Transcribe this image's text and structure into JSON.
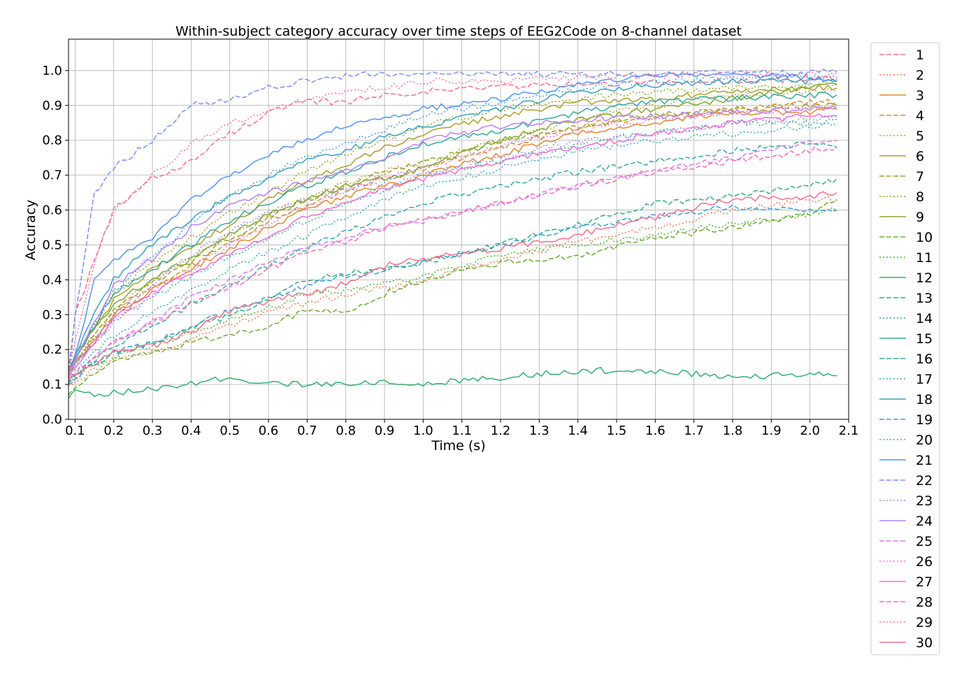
{
  "chart_data": {
    "type": "line",
    "title": "Within-subject category accuracy over time steps of EEG2Code on 8-channel dataset",
    "xlabel": "Time (s)",
    "ylabel": "Accuracy",
    "xlim": [
      0.083,
      2.1
    ],
    "ylim": [
      0.0,
      1.09
    ],
    "x_ticks": [
      "0.1",
      "0.2",
      "0.3",
      "0.4",
      "0.5",
      "0.6",
      "0.7",
      "0.8",
      "0.9",
      "1.0",
      "1.1",
      "1.2",
      "1.3",
      "1.4",
      "1.5",
      "1.6",
      "1.7",
      "1.8",
      "1.9",
      "2.0",
      "2.1"
    ],
    "y_ticks": [
      "0.0",
      "0.1",
      "0.2",
      "0.3",
      "0.4",
      "0.5",
      "0.6",
      "0.7",
      "0.8",
      "0.9",
      "1.0"
    ],
    "grid": true,
    "legend_placement": "outside-right",
    "x": [
      0.083,
      0.1,
      0.15,
      0.2,
      0.3,
      0.4,
      0.5,
      0.6,
      0.7,
      0.8,
      0.9,
      1.0,
      1.2,
      1.4,
      1.6,
      1.8,
      2.0,
      2.07
    ],
    "series": [
      {
        "name": "1",
        "color": "#f77189",
        "dash": "dashed",
        "values": [
          0.12,
          0.3,
          0.45,
          0.6,
          0.69,
          0.74,
          0.82,
          0.88,
          0.91,
          0.91,
          0.93,
          0.94,
          0.955,
          0.96,
          0.965,
          0.97,
          0.975,
          0.975
        ]
      },
      {
        "name": "2",
        "color": "#f7754f",
        "dash": "dotted",
        "values": [
          0.1,
          0.11,
          0.14,
          0.17,
          0.19,
          0.23,
          0.27,
          0.31,
          0.33,
          0.36,
          0.38,
          0.4,
          0.46,
          0.51,
          0.55,
          0.6,
          0.63,
          0.63
        ]
      },
      {
        "name": "3",
        "color": "#e18a31",
        "dash": "solid",
        "values": [
          0.14,
          0.16,
          0.22,
          0.3,
          0.37,
          0.43,
          0.49,
          0.55,
          0.6,
          0.64,
          0.67,
          0.7,
          0.76,
          0.82,
          0.85,
          0.88,
          0.88,
          0.89
        ]
      },
      {
        "name": "4",
        "color": "#ce8f31",
        "dash": "dashed",
        "values": [
          0.12,
          0.16,
          0.23,
          0.3,
          0.38,
          0.44,
          0.51,
          0.57,
          0.61,
          0.66,
          0.69,
          0.72,
          0.78,
          0.84,
          0.87,
          0.89,
          0.91,
          0.91
        ]
      },
      {
        "name": "5",
        "color": "#bb9832",
        "dash": "dotted",
        "values": [
          0.13,
          0.17,
          0.24,
          0.31,
          0.4,
          0.46,
          0.53,
          0.59,
          0.63,
          0.68,
          0.71,
          0.74,
          0.8,
          0.86,
          0.9,
          0.93,
          0.94,
          0.94
        ]
      },
      {
        "name": "6",
        "color": "#ae9d31",
        "dash": "solid",
        "values": [
          0.14,
          0.18,
          0.26,
          0.34,
          0.43,
          0.49,
          0.56,
          0.63,
          0.68,
          0.73,
          0.78,
          0.82,
          0.87,
          0.91,
          0.92,
          0.94,
          0.95,
          0.95
        ]
      },
      {
        "name": "7",
        "color": "#9ca231",
        "dash": "dashed",
        "values": [
          0.13,
          0.16,
          0.24,
          0.31,
          0.39,
          0.45,
          0.52,
          0.58,
          0.63,
          0.67,
          0.71,
          0.74,
          0.8,
          0.84,
          0.87,
          0.89,
          0.9,
          0.9
        ]
      },
      {
        "name": "8",
        "color": "#8ea631",
        "dash": "dotted",
        "values": [
          0.14,
          0.18,
          0.27,
          0.36,
          0.45,
          0.52,
          0.59,
          0.65,
          0.71,
          0.76,
          0.8,
          0.84,
          0.89,
          0.92,
          0.94,
          0.95,
          0.96,
          0.96
        ]
      },
      {
        "name": "9",
        "color": "#80aa31",
        "dash": "solid",
        "values": [
          0.13,
          0.17,
          0.26,
          0.33,
          0.4,
          0.46,
          0.53,
          0.59,
          0.63,
          0.67,
          0.69,
          0.72,
          0.8,
          0.86,
          0.89,
          0.92,
          0.95,
          0.96
        ]
      },
      {
        "name": "10",
        "color": "#6ead32",
        "dash": "dashed",
        "values": [
          0.07,
          0.09,
          0.13,
          0.17,
          0.19,
          0.22,
          0.24,
          0.27,
          0.31,
          0.31,
          0.36,
          0.4,
          0.45,
          0.47,
          0.52,
          0.55,
          0.59,
          0.63
        ]
      },
      {
        "name": "11",
        "color": "#4fb032",
        "dash": "dotted",
        "values": [
          0.1,
          0.12,
          0.16,
          0.18,
          0.21,
          0.25,
          0.29,
          0.32,
          0.36,
          0.37,
          0.39,
          0.41,
          0.47,
          0.5,
          0.53,
          0.56,
          0.59,
          0.6
        ]
      },
      {
        "name": "12",
        "color": "#33b06d",
        "dash": "solid",
        "values": [
          0.06,
          0.08,
          0.07,
          0.075,
          0.085,
          0.1,
          0.12,
          0.1,
          0.1,
          0.1,
          0.11,
          0.1,
          0.12,
          0.14,
          0.14,
          0.12,
          0.13,
          0.125
        ]
      },
      {
        "name": "13",
        "color": "#35ad85",
        "dash": "dashed",
        "values": [
          0.1,
          0.13,
          0.16,
          0.19,
          0.22,
          0.26,
          0.3,
          0.34,
          0.4,
          0.42,
          0.43,
          0.45,
          0.5,
          0.56,
          0.62,
          0.64,
          0.67,
          0.69
        ]
      },
      {
        "name": "14",
        "color": "#36ab95",
        "dash": "dotted",
        "values": [
          0.12,
          0.15,
          0.22,
          0.28,
          0.35,
          0.41,
          0.47,
          0.52,
          0.57,
          0.62,
          0.66,
          0.7,
          0.74,
          0.79,
          0.82,
          0.85,
          0.85,
          0.86
        ]
      },
      {
        "name": "15",
        "color": "#37a8a1",
        "dash": "solid",
        "values": [
          0.14,
          0.17,
          0.27,
          0.36,
          0.43,
          0.5,
          0.57,
          0.62,
          0.67,
          0.71,
          0.75,
          0.79,
          0.83,
          0.88,
          0.91,
          0.92,
          0.93,
          0.93
        ]
      },
      {
        "name": "16",
        "color": "#38a6ac",
        "dash": "dashed",
        "values": [
          0.11,
          0.13,
          0.17,
          0.21,
          0.27,
          0.33,
          0.38,
          0.44,
          0.49,
          0.54,
          0.58,
          0.62,
          0.67,
          0.71,
          0.74,
          0.77,
          0.79,
          0.78
        ]
      },
      {
        "name": "17",
        "color": "#39a4b7",
        "dash": "dotted",
        "values": [
          0.11,
          0.13,
          0.19,
          0.24,
          0.31,
          0.37,
          0.43,
          0.48,
          0.53,
          0.58,
          0.63,
          0.67,
          0.72,
          0.77,
          0.8,
          0.82,
          0.84,
          0.85
        ]
      },
      {
        "name": "18",
        "color": "#3aa1c3",
        "dash": "solid",
        "values": [
          0.15,
          0.18,
          0.3,
          0.4,
          0.5,
          0.57,
          0.64,
          0.69,
          0.74,
          0.77,
          0.81,
          0.84,
          0.89,
          0.94,
          0.96,
          0.97,
          0.97,
          0.97
        ]
      },
      {
        "name": "19",
        "color": "#3c9ed3",
        "dash": "dashed",
        "values": [
          0.1,
          0.12,
          0.16,
          0.19,
          0.22,
          0.27,
          0.31,
          0.35,
          0.38,
          0.41,
          0.43,
          0.45,
          0.5,
          0.55,
          0.58,
          0.61,
          0.6,
          0.6
        ]
      },
      {
        "name": "20",
        "color": "#459ae8",
        "dash": "dotted",
        "values": [
          0.13,
          0.17,
          0.27,
          0.37,
          0.47,
          0.56,
          0.64,
          0.7,
          0.75,
          0.79,
          0.83,
          0.87,
          0.91,
          0.95,
          0.97,
          0.98,
          0.98,
          0.98
        ]
      },
      {
        "name": "21",
        "color": "#5694f5",
        "dash": "solid",
        "values": [
          0.13,
          0.18,
          0.4,
          0.46,
          0.52,
          0.63,
          0.7,
          0.76,
          0.8,
          0.84,
          0.86,
          0.89,
          0.92,
          0.96,
          0.985,
          0.99,
          0.98,
          0.97
        ]
      },
      {
        "name": "22",
        "color": "#7b8ff5",
        "dash": "dashed",
        "values": [
          0.14,
          0.3,
          0.65,
          0.72,
          0.8,
          0.9,
          0.92,
          0.95,
          0.97,
          0.985,
          0.99,
          0.99,
          0.99,
          0.99,
          0.99,
          0.995,
          0.995,
          0.995
        ]
      },
      {
        "name": "23",
        "color": "#9a89f5",
        "dash": "dotted",
        "values": [
          0.12,
          0.15,
          0.23,
          0.3,
          0.39,
          0.47,
          0.54,
          0.59,
          0.63,
          0.66,
          0.68,
          0.7,
          0.75,
          0.8,
          0.82,
          0.85,
          0.86,
          0.87
        ]
      },
      {
        "name": "24",
        "color": "#b882f5",
        "dash": "solid",
        "values": [
          0.13,
          0.17,
          0.28,
          0.38,
          0.46,
          0.55,
          0.61,
          0.65,
          0.68,
          0.71,
          0.75,
          0.8,
          0.84,
          0.86,
          0.87,
          0.88,
          0.89,
          0.89
        ]
      },
      {
        "name": "25",
        "color": "#d47af5",
        "dash": "dashed",
        "values": [
          0.11,
          0.13,
          0.18,
          0.22,
          0.28,
          0.35,
          0.4,
          0.45,
          0.49,
          0.52,
          0.55,
          0.57,
          0.62,
          0.67,
          0.71,
          0.75,
          0.79,
          0.8
        ]
      },
      {
        "name": "26",
        "color": "#ee6df5",
        "dash": "dotted",
        "values": [
          0.12,
          0.16,
          0.22,
          0.28,
          0.36,
          0.43,
          0.5,
          0.56,
          0.61,
          0.66,
          0.69,
          0.72,
          0.78,
          0.83,
          0.86,
          0.88,
          0.89,
          0.9
        ]
      },
      {
        "name": "27",
        "color": "#f56bd8",
        "dash": "solid",
        "values": [
          0.12,
          0.15,
          0.22,
          0.29,
          0.36,
          0.42,
          0.47,
          0.53,
          0.58,
          0.62,
          0.66,
          0.69,
          0.74,
          0.78,
          0.82,
          0.85,
          0.87,
          0.87
        ]
      },
      {
        "name": "28",
        "color": "#f66fb6",
        "dash": "dashed",
        "values": [
          0.11,
          0.13,
          0.18,
          0.22,
          0.28,
          0.33,
          0.38,
          0.43,
          0.48,
          0.51,
          0.55,
          0.57,
          0.62,
          0.67,
          0.71,
          0.74,
          0.77,
          0.78
        ]
      },
      {
        "name": "29",
        "color": "#f7729c",
        "dash": "dotted",
        "values": [
          0.12,
          0.22,
          0.45,
          0.6,
          0.7,
          0.79,
          0.85,
          0.88,
          0.92,
          0.94,
          0.95,
          0.97,
          0.97,
          0.98,
          0.985,
          0.99,
          0.99,
          0.99
        ]
      },
      {
        "name": "30",
        "color": "#f7718c",
        "dash": "solid",
        "values": [
          0.11,
          0.13,
          0.16,
          0.19,
          0.21,
          0.25,
          0.31,
          0.34,
          0.36,
          0.39,
          0.44,
          0.46,
          0.49,
          0.53,
          0.58,
          0.63,
          0.64,
          0.65
        ]
      }
    ]
  }
}
